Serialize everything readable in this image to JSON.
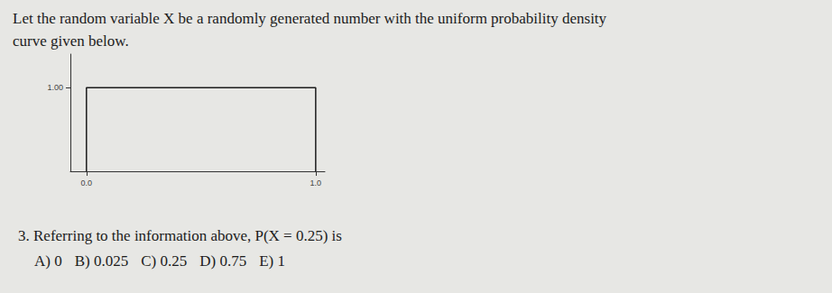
{
  "intro": [
    "Let the random variable X be a randomly generated number with the uniform probability density",
    "curve given below."
  ],
  "chart_data": {
    "type": "line",
    "x": [
      0,
      0,
      1,
      1
    ],
    "values": [
      0,
      1,
      1,
      0
    ],
    "color": "#1c1c1c",
    "xlim": [
      -0.07,
      1.04
    ],
    "xticks": [
      {
        "value": 0,
        "label": "0.0"
      },
      {
        "value": 1,
        "label": "1.0"
      }
    ],
    "ylim": [
      0,
      1.4
    ],
    "yticks": [
      {
        "value": 1,
        "label": "1.00"
      }
    ],
    "grid": false
  },
  "question": {
    "number": "3.",
    "text": "Referring to the information above, P(X = 0.25) is"
  },
  "options": [
    {
      "letter": "A)",
      "text": "0"
    },
    {
      "letter": "B)",
      "text": "0.025"
    },
    {
      "letter": "C)",
      "text": "0.25"
    },
    {
      "letter": "D)",
      "text": "0.75"
    },
    {
      "letter": "E)",
      "text": "1"
    }
  ]
}
